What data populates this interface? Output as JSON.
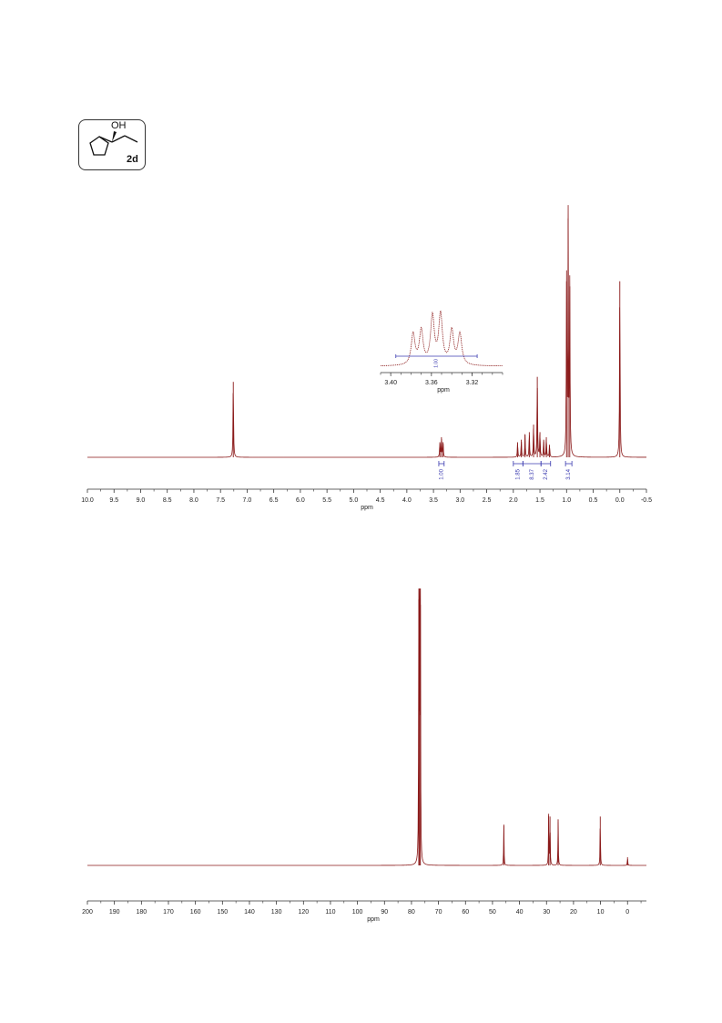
{
  "compound": {
    "label": "2d",
    "hydroxyl": "OH"
  },
  "colors": {
    "trace": "#8b1a1a",
    "integral": "#3b3bb0",
    "axis": "#333333"
  },
  "chart_data": [
    {
      "type": "line",
      "title": "",
      "xlabel": "ppm",
      "xlim": [
        10.0,
        -0.5
      ],
      "x_reversed": true,
      "ticks": [
        "10.0",
        "9.5",
        "9.0",
        "8.5",
        "8.0",
        "7.5",
        "7.0",
        "6.5",
        "6.0",
        "5.5",
        "5.0",
        "4.5",
        "4.0",
        "3.5",
        "3.0",
        "2.5",
        "2.0",
        "1.5",
        "1.0",
        "0.5",
        "0.0",
        "-0.5"
      ],
      "peaks": [
        {
          "x": 7.26,
          "height": 0.3
        },
        {
          "x": 3.38,
          "height": 0.06
        },
        {
          "x": 3.35,
          "height": 0.08
        },
        {
          "x": 3.32,
          "height": 0.06
        },
        {
          "x": 1.92,
          "height": 0.06
        },
        {
          "x": 1.85,
          "height": 0.07
        },
        {
          "x": 1.78,
          "height": 0.09
        },
        {
          "x": 1.7,
          "height": 0.1
        },
        {
          "x": 1.62,
          "height": 0.13
        },
        {
          "x": 1.55,
          "height": 0.32
        },
        {
          "x": 1.5,
          "height": 0.1
        },
        {
          "x": 1.43,
          "height": 0.07
        },
        {
          "x": 1.38,
          "height": 0.08
        },
        {
          "x": 1.32,
          "height": 0.05
        },
        {
          "x": 1.0,
          "height": 0.7
        },
        {
          "x": 0.97,
          "height": 0.95
        },
        {
          "x": 0.94,
          "height": 0.68
        },
        {
          "x": 0.0,
          "height": 0.7
        }
      ],
      "integrals": [
        {
          "from": 3.4,
          "to": 3.3,
          "value": "1.00"
        },
        {
          "from": 2.0,
          "to": 1.82,
          "value": "1.85"
        },
        {
          "from": 1.82,
          "to": 1.48,
          "value": "8.37"
        },
        {
          "from": 1.48,
          "to": 1.3,
          "value": "2.42"
        },
        {
          "from": 1.02,
          "to": 0.9,
          "value": "3.14"
        }
      ],
      "inset": {
        "xlabel": "ppm",
        "xlim": [
          3.41,
          3.29
        ],
        "ticks": [
          "3.40",
          "3.36",
          "3.32"
        ],
        "peaks": [
          {
            "x": 3.378,
            "height": 0.55
          },
          {
            "x": 3.37,
            "height": 0.6
          },
          {
            "x": 3.359,
            "height": 0.85
          },
          {
            "x": 3.351,
            "height": 0.88
          },
          {
            "x": 3.34,
            "height": 0.6
          },
          {
            "x": 3.332,
            "height": 0.55
          }
        ],
        "integral_value": "1.00"
      }
    },
    {
      "type": "line",
      "title": "",
      "xlabel": "ppm",
      "xlim": [
        200,
        -7
      ],
      "x_reversed": true,
      "ticks": [
        "200",
        "190",
        "180",
        "170",
        "160",
        "150",
        "140",
        "130",
        "120",
        "110",
        "100",
        "90",
        "80",
        "70",
        "60",
        "50",
        "40",
        "30",
        "20",
        "10",
        "0"
      ],
      "peaks": [
        {
          "x": 77.3,
          "height": 0.98
        },
        {
          "x": 77.0,
          "height": 0.97
        },
        {
          "x": 76.7,
          "height": 0.96
        },
        {
          "x": 45.8,
          "height": 0.15
        },
        {
          "x": 29.2,
          "height": 0.19
        },
        {
          "x": 28.7,
          "height": 0.18
        },
        {
          "x": 25.7,
          "height": 0.17
        },
        {
          "x": 10.1,
          "height": 0.18
        },
        {
          "x": 0.0,
          "height": 0.03
        }
      ]
    }
  ]
}
